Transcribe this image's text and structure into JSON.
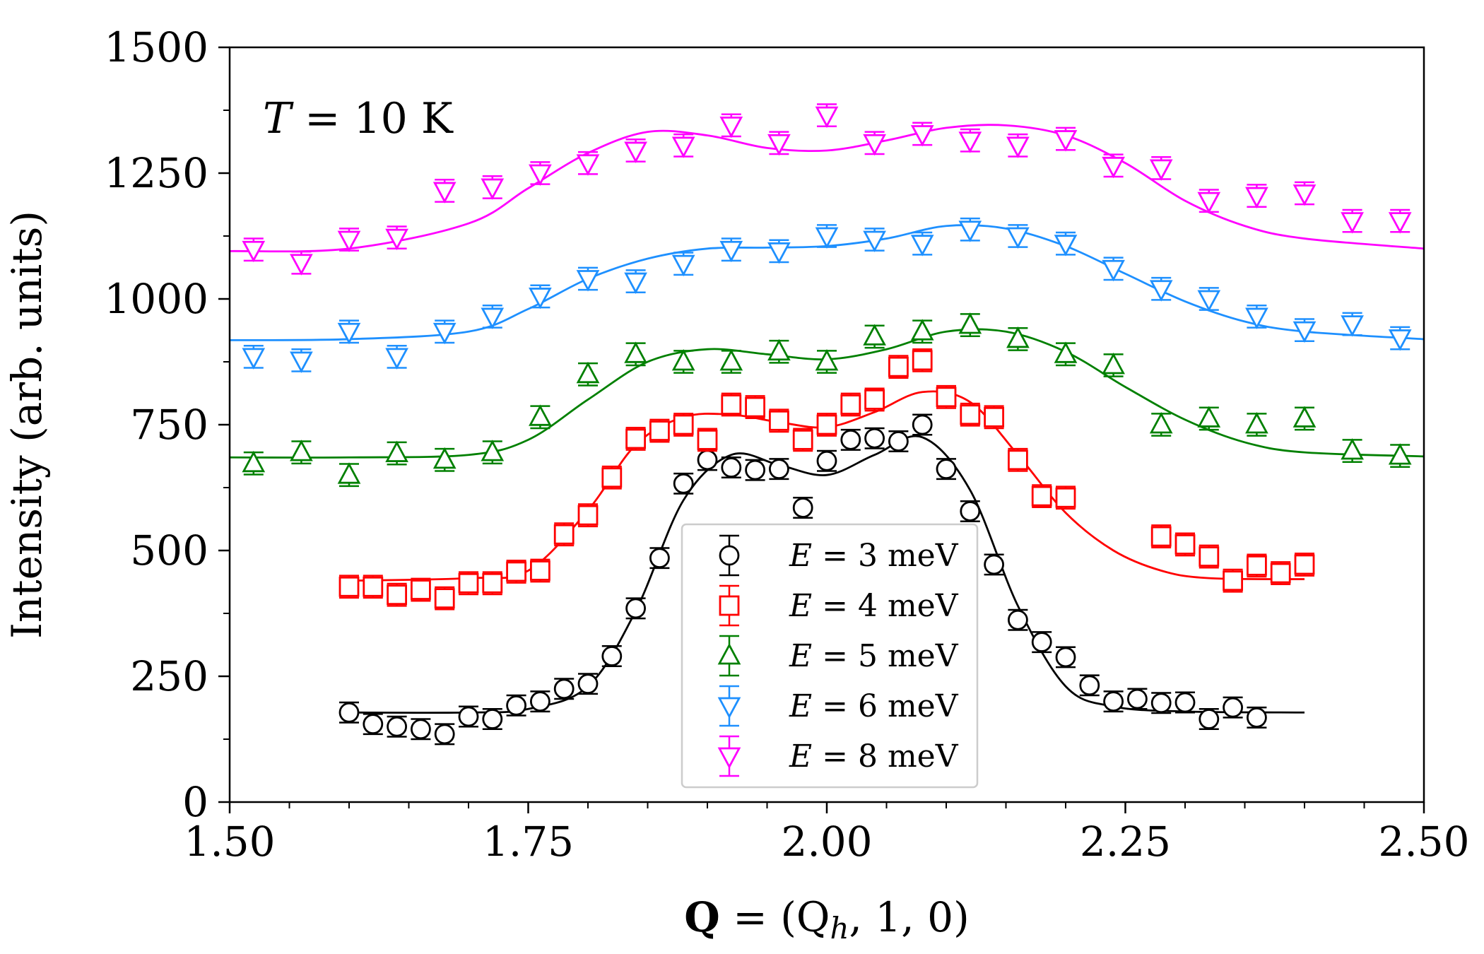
{
  "chart_data": {
    "type": "scatter",
    "title": "",
    "xlabel_bold": "Q",
    "xlabel_rest": " = (Q",
    "xlabel_sub": "h",
    "xlabel_end": ", 1, 0)",
    "ylabel": "Intensity (arb. units)",
    "annotation_var": "T",
    "annotation_rest": " = 10 K",
    "xlim": [
      1.5,
      2.5
    ],
    "ylim": [
      0,
      1500
    ],
    "x_ticks": [
      1.5,
      1.75,
      2.0,
      2.25,
      2.5
    ],
    "x_tick_labels": [
      "1.50",
      "1.75",
      "2.00",
      "2.25",
      "2.50"
    ],
    "y_ticks": [
      0,
      250,
      500,
      750,
      1000,
      1250,
      1500
    ],
    "y_tick_labels": [
      "0",
      "250",
      "500",
      "750",
      "1000",
      "1250",
      "1500"
    ],
    "legend_position": "lower-center",
    "series": [
      {
        "name": "E = 3 meV",
        "legend_var": "E",
        "legend_rest": " = 3 meV",
        "color": "#000000",
        "marker": "circle",
        "errorbar": 20,
        "x": [
          1.6,
          1.62,
          1.64,
          1.66,
          1.68,
          1.7,
          1.72,
          1.74,
          1.76,
          1.78,
          1.8,
          1.82,
          1.84,
          1.86,
          1.88,
          1.9,
          1.92,
          1.94,
          1.96,
          1.98,
          2.0,
          2.02,
          2.04,
          2.06,
          2.08,
          2.1,
          2.12,
          2.14,
          2.16,
          2.18,
          2.2,
          2.22,
          2.24,
          2.26,
          2.28,
          2.3,
          2.32,
          2.34,
          2.36
        ],
        "y": [
          178,
          155,
          150,
          145,
          135,
          170,
          165,
          192,
          200,
          225,
          235,
          290,
          385,
          485,
          633,
          680,
          665,
          660,
          662,
          585,
          678,
          720,
          723,
          717,
          750,
          662,
          578,
          472,
          362,
          318,
          288,
          232,
          200,
          205,
          197,
          198,
          165,
          188,
          168
        ],
        "fit": [
          [
            1.6,
            178
          ],
          [
            1.7,
            178
          ],
          [
            1.75,
            185
          ],
          [
            1.8,
            230
          ],
          [
            1.84,
            380
          ],
          [
            1.88,
            600
          ],
          [
            1.92,
            690
          ],
          [
            1.96,
            670
          ],
          [
            2.0,
            650
          ],
          [
            2.04,
            690
          ],
          [
            2.08,
            725
          ],
          [
            2.12,
            620
          ],
          [
            2.16,
            390
          ],
          [
            2.2,
            230
          ],
          [
            2.24,
            190
          ],
          [
            2.3,
            180
          ],
          [
            2.4,
            178
          ]
        ]
      },
      {
        "name": "E = 4 meV",
        "legend_var": "E",
        "legend_rest": " = 4 meV",
        "color": "#ff0000",
        "marker": "square",
        "errorbar": 22,
        "x": [
          1.6,
          1.62,
          1.64,
          1.66,
          1.68,
          1.7,
          1.72,
          1.74,
          1.76,
          1.78,
          1.8,
          1.82,
          1.84,
          1.86,
          1.88,
          1.9,
          1.92,
          1.94,
          1.96,
          1.98,
          2.0,
          2.02,
          2.04,
          2.06,
          2.08,
          2.1,
          2.12,
          2.14,
          2.16,
          2.18,
          2.2,
          2.28,
          2.3,
          2.32,
          2.34,
          2.36,
          2.38,
          2.4
        ],
        "y": [
          428,
          428,
          412,
          422,
          405,
          435,
          435,
          458,
          460,
          532,
          570,
          645,
          722,
          738,
          750,
          720,
          790,
          785,
          758,
          720,
          750,
          790,
          800,
          865,
          878,
          805,
          770,
          765,
          680,
          608,
          605,
          528,
          512,
          488,
          440,
          470,
          455,
          472
        ],
        "fit": [
          [
            1.6,
            440
          ],
          [
            1.7,
            445
          ],
          [
            1.75,
            460
          ],
          [
            1.8,
            580
          ],
          [
            1.84,
            710
          ],
          [
            1.88,
            765
          ],
          [
            1.92,
            770
          ],
          [
            1.96,
            755
          ],
          [
            2.0,
            745
          ],
          [
            2.04,
            775
          ],
          [
            2.08,
            815
          ],
          [
            2.12,
            795
          ],
          [
            2.16,
            690
          ],
          [
            2.2,
            575
          ],
          [
            2.24,
            500
          ],
          [
            2.28,
            460
          ],
          [
            2.32,
            445
          ],
          [
            2.4,
            443
          ]
        ]
      },
      {
        "name": "E = 5 meV",
        "legend_var": "E",
        "legend_rest": " = 5 meV",
        "color": "#008000",
        "marker": "triangle-up",
        "errorbar": 22,
        "x": [
          1.52,
          1.56,
          1.6,
          1.64,
          1.68,
          1.72,
          1.76,
          1.8,
          1.84,
          1.88,
          1.92,
          1.96,
          2.0,
          2.04,
          2.08,
          2.12,
          2.16,
          2.2,
          2.24,
          2.28,
          2.32,
          2.36,
          2.4,
          2.44,
          2.48
        ],
        "y": [
          673,
          695,
          650,
          693,
          680,
          695,
          765,
          850,
          890,
          875,
          875,
          895,
          875,
          925,
          935,
          948,
          920,
          890,
          868,
          750,
          762,
          750,
          762,
          698,
          688
        ],
        "fit": [
          [
            1.5,
            685
          ],
          [
            1.6,
            685
          ],
          [
            1.7,
            690
          ],
          [
            1.75,
            720
          ],
          [
            1.8,
            800
          ],
          [
            1.85,
            875
          ],
          [
            1.9,
            900
          ],
          [
            1.95,
            890
          ],
          [
            2.0,
            880
          ],
          [
            2.05,
            900
          ],
          [
            2.1,
            935
          ],
          [
            2.15,
            935
          ],
          [
            2.2,
            895
          ],
          [
            2.25,
            825
          ],
          [
            2.3,
            760
          ],
          [
            2.35,
            715
          ],
          [
            2.4,
            695
          ],
          [
            2.5,
            687
          ]
        ]
      },
      {
        "name": "E = 6 meV",
        "legend_var": "E",
        "legend_rest": " = 6 meV",
        "color": "#1e90ff",
        "marker": "triangle-down",
        "errorbar": 22,
        "x": [
          1.52,
          1.56,
          1.6,
          1.64,
          1.68,
          1.72,
          1.76,
          1.8,
          1.84,
          1.88,
          1.92,
          1.96,
          2.0,
          2.04,
          2.08,
          2.12,
          2.16,
          2.2,
          2.24,
          2.28,
          2.32,
          2.36,
          2.4,
          2.44,
          2.48
        ],
        "y": [
          885,
          878,
          935,
          885,
          935,
          965,
          1005,
          1040,
          1035,
          1070,
          1098,
          1095,
          1125,
          1118,
          1110,
          1138,
          1125,
          1110,
          1060,
          1020,
          1000,
          965,
          938,
          950,
          922
        ],
        "fit": [
          [
            1.5,
            918
          ],
          [
            1.6,
            920
          ],
          [
            1.7,
            935
          ],
          [
            1.75,
            980
          ],
          [
            1.8,
            1040
          ],
          [
            1.85,
            1080
          ],
          [
            1.9,
            1100
          ],
          [
            1.95,
            1102
          ],
          [
            2.0,
            1105
          ],
          [
            2.05,
            1120
          ],
          [
            2.1,
            1145
          ],
          [
            2.15,
            1140
          ],
          [
            2.2,
            1105
          ],
          [
            2.25,
            1050
          ],
          [
            2.3,
            995
          ],
          [
            2.35,
            955
          ],
          [
            2.4,
            935
          ],
          [
            2.5,
            920
          ]
        ]
      },
      {
        "name": "E = 8 meV",
        "legend_var": "E",
        "legend_rest": " = 8 meV",
        "color": "#ff00ff",
        "marker": "triangle-down",
        "errorbar": 22,
        "x": [
          1.52,
          1.56,
          1.6,
          1.64,
          1.68,
          1.72,
          1.76,
          1.8,
          1.84,
          1.88,
          1.92,
          1.96,
          2.0,
          2.04,
          2.08,
          2.12,
          2.16,
          2.2,
          2.24,
          2.28,
          2.32,
          2.36,
          2.4,
          2.44,
          2.48
        ],
        "y": [
          1098,
          1072,
          1118,
          1122,
          1215,
          1222,
          1250,
          1270,
          1295,
          1305,
          1345,
          1310,
          1365,
          1310,
          1328,
          1315,
          1305,
          1318,
          1265,
          1260,
          1195,
          1205,
          1210,
          1155,
          1155
        ],
        "fit": [
          [
            1.5,
            1095
          ],
          [
            1.6,
            1100
          ],
          [
            1.7,
            1150
          ],
          [
            1.75,
            1220
          ],
          [
            1.8,
            1290
          ],
          [
            1.85,
            1332
          ],
          [
            1.9,
            1325
          ],
          [
            1.95,
            1300
          ],
          [
            2.0,
            1295
          ],
          [
            2.05,
            1315
          ],
          [
            2.1,
            1340
          ],
          [
            2.15,
            1345
          ],
          [
            2.2,
            1325
          ],
          [
            2.25,
            1270
          ],
          [
            2.3,
            1195
          ],
          [
            2.35,
            1145
          ],
          [
            2.4,
            1120
          ],
          [
            2.5,
            1100
          ]
        ]
      }
    ]
  }
}
